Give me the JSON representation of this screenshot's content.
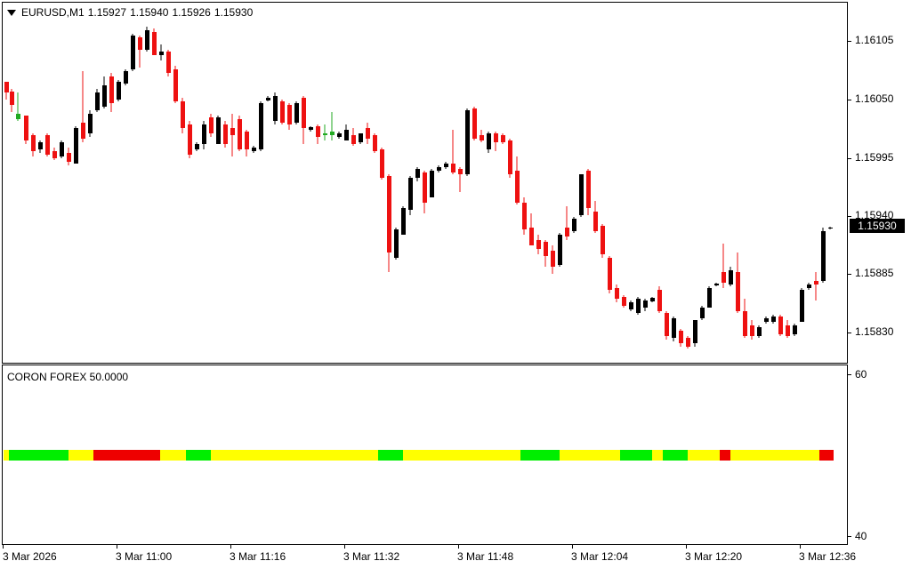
{
  "symbol_header": {
    "label": "EURUSD,M1",
    "open": "1.15927",
    "high": "1.15940",
    "low": "1.15926",
    "close": "1.15930"
  },
  "price_axis": {
    "labels": [
      "1.16105",
      "1.16050",
      "1.15995",
      "1.15940",
      "1.15885",
      "1.15830"
    ],
    "current_price": "1.15930"
  },
  "indicator": {
    "title": "CORON FOREX 50.0000",
    "axis_top": "60",
    "axis_bottom": "40",
    "colors": {
      "green": "#00ee00",
      "yellow": "#ffff00",
      "red": "#ee0000"
    }
  },
  "time_axis": {
    "labels": [
      "3 Mar 2026",
      "3 Mar 11:00",
      "3 Mar 11:16",
      "3 Mar 11:32",
      "3 Mar 11:48",
      "3 Mar 12:04",
      "3 Mar 12:20",
      "3 Mar 12:36"
    ]
  },
  "colors": {
    "bull": "#000000",
    "bear": "#ee1111",
    "doji": "#22aa22"
  }
}
